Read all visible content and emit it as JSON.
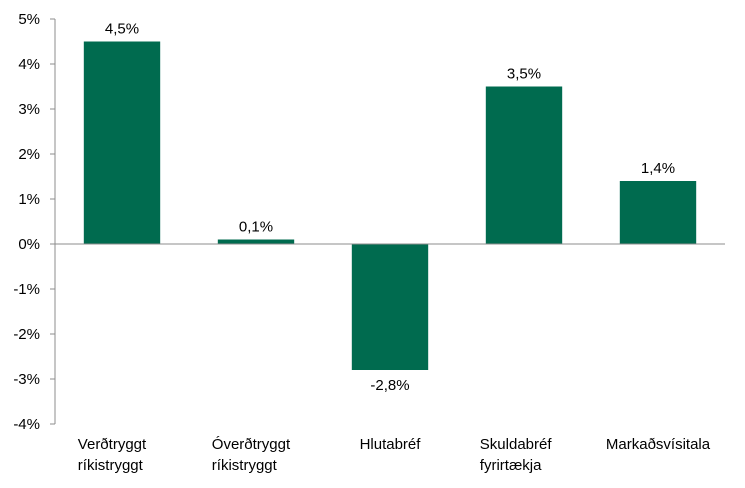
{
  "chart_data": {
    "type": "bar",
    "categories": [
      [
        "Verðtryggt",
        "ríkistryggt"
      ],
      [
        "Óverðtryggt",
        "ríkistryggt"
      ],
      [
        "Hlutabréf"
      ],
      [
        "Skuldabréf",
        "fyrirtækja"
      ],
      [
        "Markaðsvísitala"
      ]
    ],
    "values": [
      4.5,
      0.1,
      -2.8,
      3.5,
      1.4
    ],
    "data_labels": [
      "4,5%",
      "0,1%",
      "-2,8%",
      "3,5%",
      "1,4%"
    ],
    "ylim": [
      -4,
      5
    ],
    "yticks": [
      5,
      4,
      3,
      2,
      1,
      0,
      -1,
      -2,
      -3,
      -4
    ],
    "ytick_labels": [
      "5%",
      "4%",
      "3%",
      "2%",
      "1%",
      "0%",
      "-1%",
      "-2%",
      "-3%",
      "-4%"
    ],
    "bar_color": "#006B4F",
    "axis_color": "#8c8c8c",
    "grid": false,
    "legend": false
  }
}
